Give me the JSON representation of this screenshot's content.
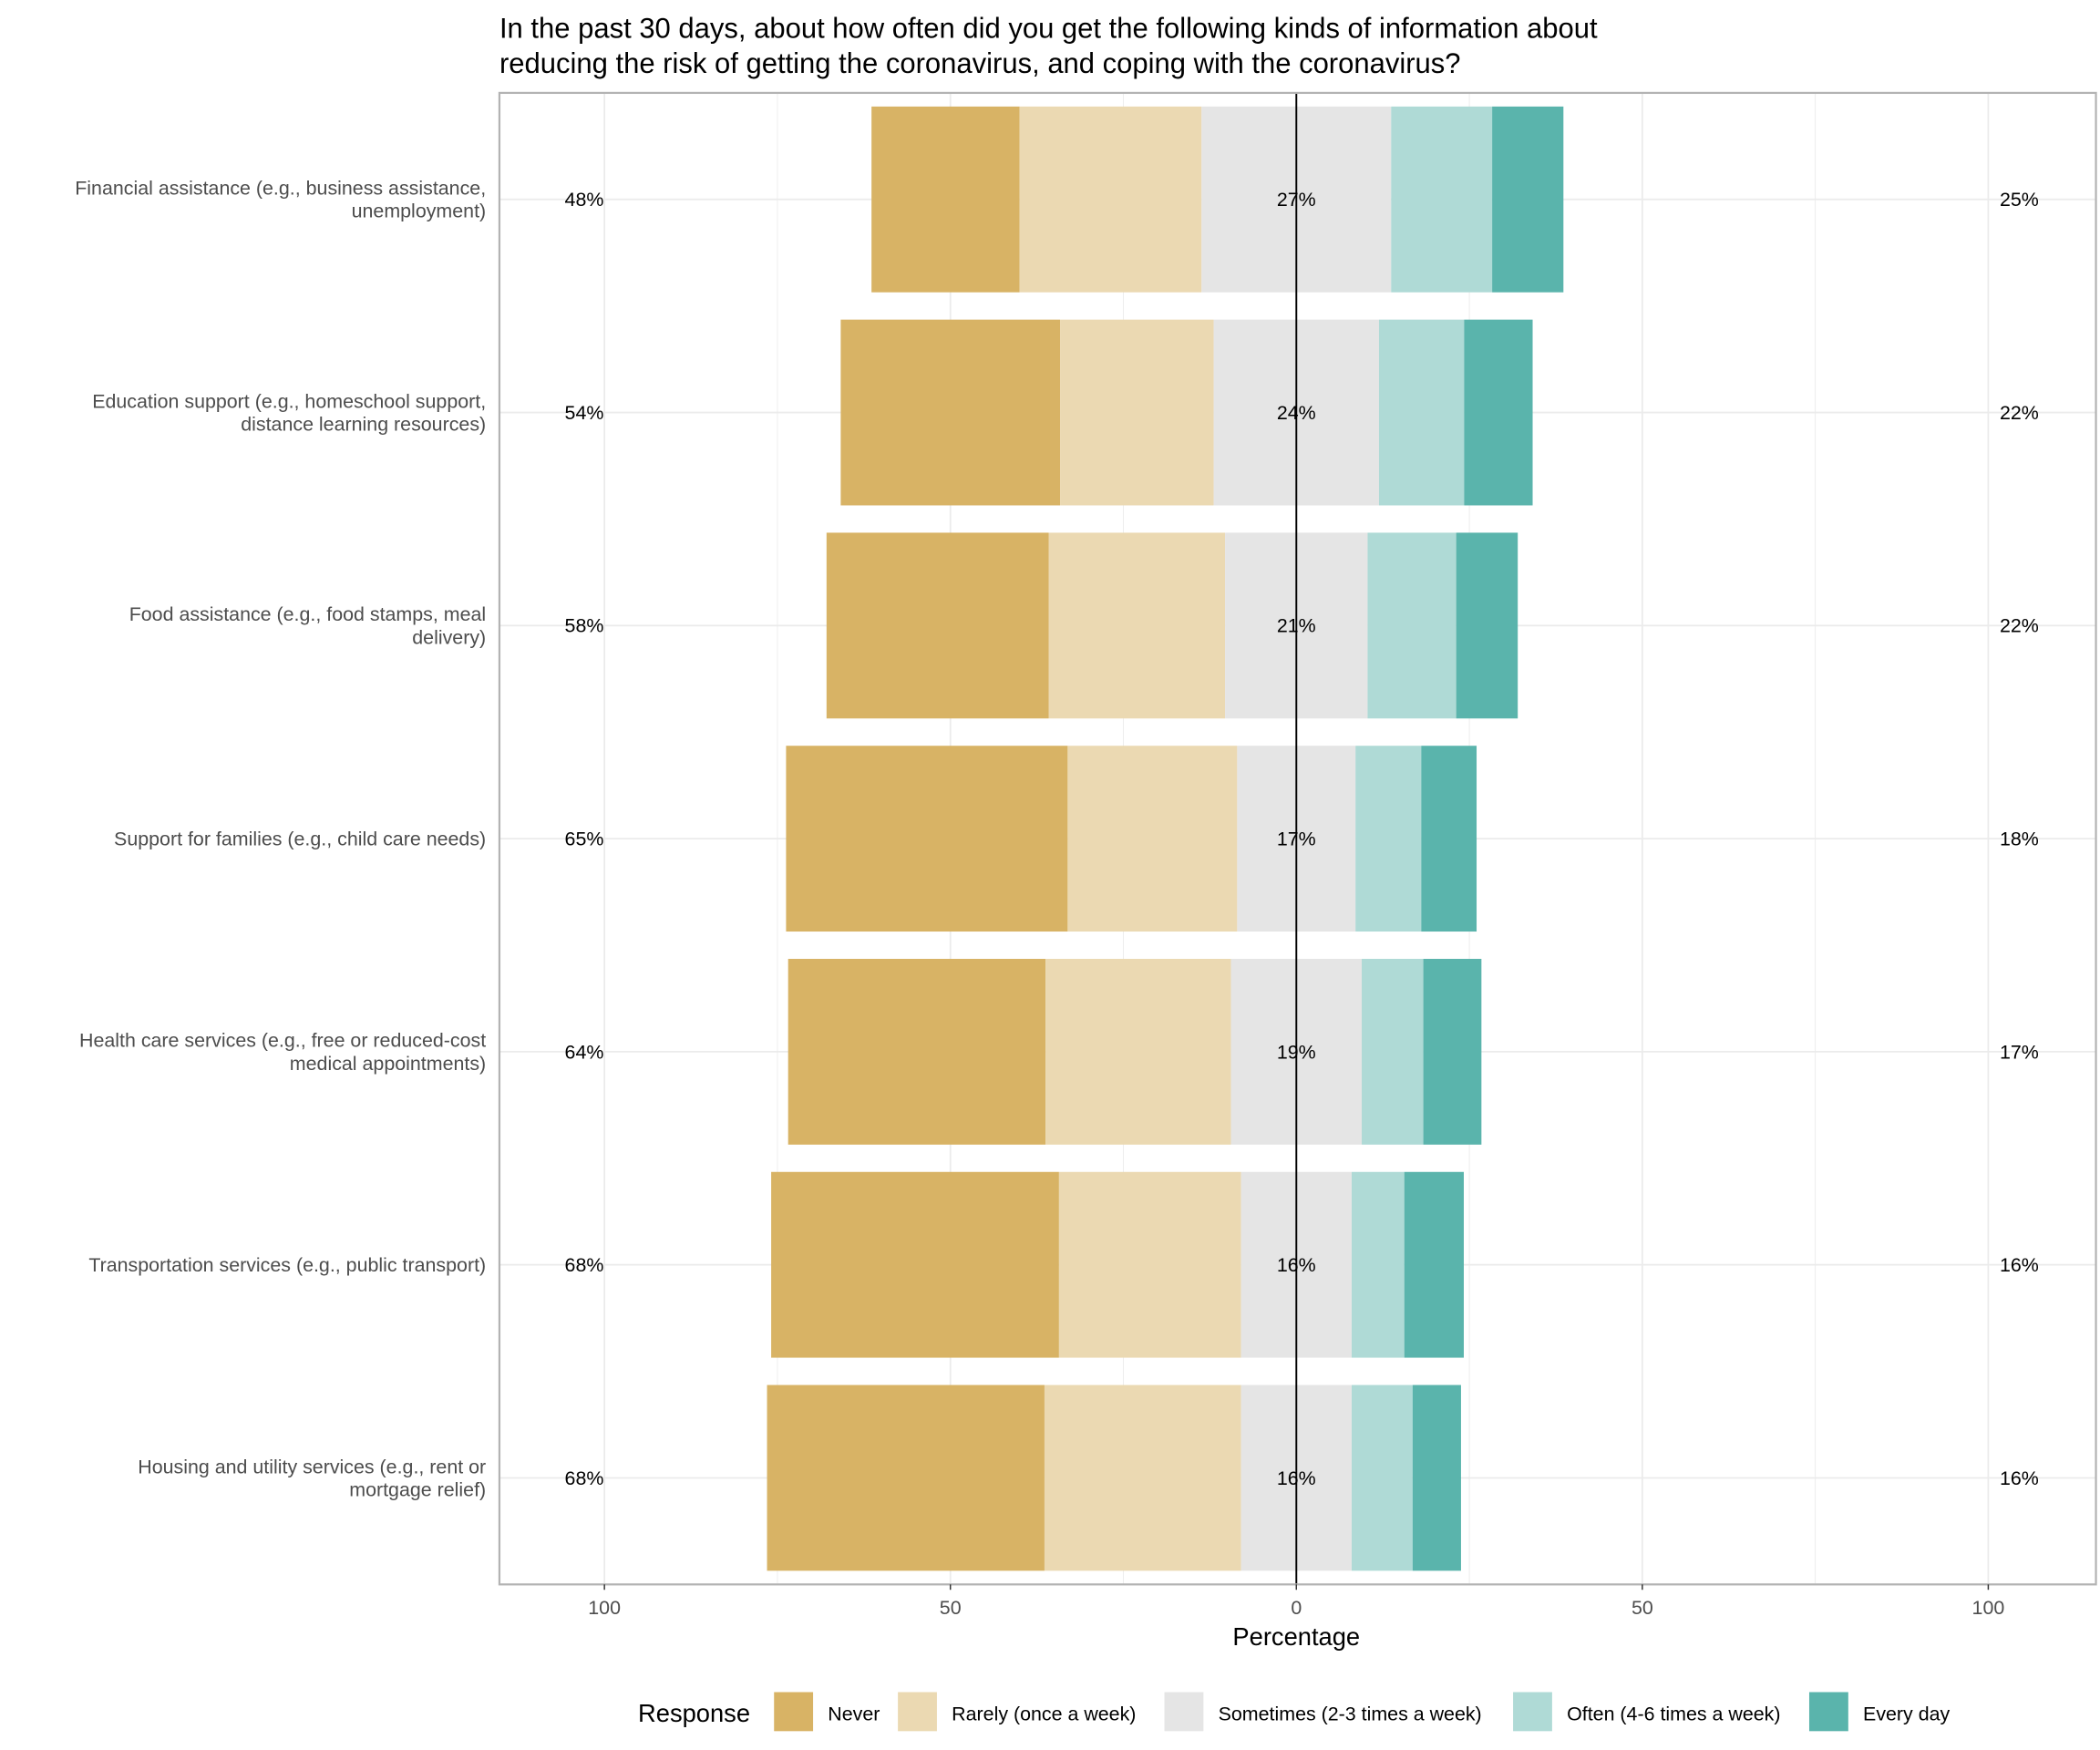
{
  "chart_data": {
    "type": "bar",
    "orientation": "horizontal-diverging-stacked",
    "title": "In the past 30 days, about how often did you get the following kinds of information about reducing the risk of getting the coronavirus, and coping with the coronavirus?",
    "title_lines": [
      "In the past 30 days, about how often did you get the following kinds of information about",
      "reducing the risk of getting the coronavirus, and coping with the coronavirus?"
    ],
    "xlabel": "Percentage",
    "xlim": [
      -100,
      100
    ],
    "xticks": [
      -100,
      -50,
      0,
      50,
      100
    ],
    "xtick_labels": [
      "100",
      "50",
      "0",
      "50",
      "100"
    ],
    "grid": true,
    "legend": {
      "title": "Response",
      "position": "bottom"
    },
    "categories": [
      [
        "Financial assistance (e.g., business assistance,",
        "unemployment)"
      ],
      [
        "Education support (e.g., homeschool support,",
        "distance learning resources)"
      ],
      [
        "Food assistance (e.g., food stamps, meal",
        "delivery)"
      ],
      [
        "Support for families (e.g., child care needs)"
      ],
      [
        "Health care services (e.g., free or reduced-cost",
        "medical appointments)"
      ],
      [
        "Transportation services (e.g., public transport)"
      ],
      [
        "Housing and utility services (e.g., rent or",
        "mortgage relief)"
      ]
    ],
    "series": [
      {
        "name": "Never",
        "color": "#d8b365",
        "values": [
          21.4,
          31.7,
          32.1,
          40.7,
          37.2,
          41.6,
          40.1
        ]
      },
      {
        "name": "Rarely (once a week)",
        "color": "#ebd9b2",
        "values": [
          26.3,
          22.2,
          25.5,
          24.5,
          26.8,
          26.3,
          28.4
        ]
      },
      {
        "name": "Sometimes (2-3 times a week)",
        "color": "#e5e5e5",
        "values": [
          27.4,
          23.9,
          20.6,
          17.1,
          18.9,
          16.0,
          16.0
        ]
      },
      {
        "name": "Often (4-6 times a week)",
        "color": "#afdad6",
        "values": [
          14.6,
          12.3,
          12.8,
          9.5,
          8.9,
          7.6,
          8.8
        ]
      },
      {
        "name": "Every day",
        "color": "#5ab4ac",
        "values": [
          10.3,
          9.9,
          8.9,
          8.0,
          8.4,
          8.6,
          7.0
        ]
      }
    ],
    "labels_left": [
      "48%",
      "54%",
      "58%",
      "65%",
      "64%",
      "68%",
      "68%"
    ],
    "labels_center": [
      "27%",
      "24%",
      "21%",
      "17%",
      "19%",
      "16%",
      "16%"
    ],
    "labels_right": [
      "25%",
      "22%",
      "22%",
      "18%",
      "17%",
      "16%",
      "16%"
    ]
  }
}
